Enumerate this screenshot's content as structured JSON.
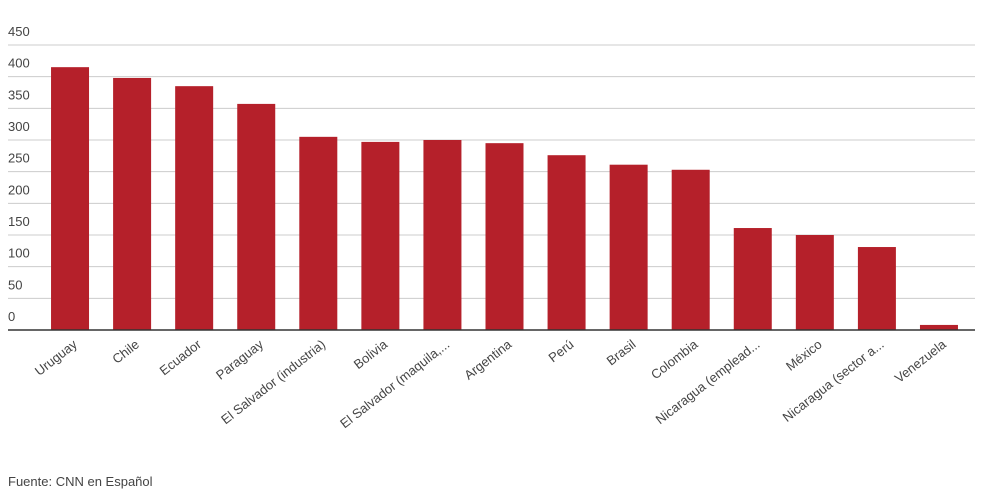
{
  "chart_data": {
    "type": "bar",
    "categories": [
      "Uruguay",
      "Chile",
      "Ecuador",
      "Paraguay",
      "El Salvador (industria)",
      "Bolivia",
      "El Salvador (maquila,...",
      "Argentina",
      "Perú",
      "Brasil",
      "Colombia",
      "Nicaragua (emplead...",
      "México",
      "Nicaragua (sector a...",
      "Venezuela"
    ],
    "values": [
      415,
      398,
      385,
      357,
      305,
      297,
      300,
      295,
      276,
      261,
      253,
      161,
      150,
      131,
      8
    ],
    "color": "#b5202a",
    "ylim": [
      0,
      450
    ],
    "yticks": [
      0,
      50,
      100,
      150,
      200,
      250,
      300,
      350,
      400,
      450
    ],
    "grid": true,
    "source": "Fuente: CNN en Español"
  }
}
